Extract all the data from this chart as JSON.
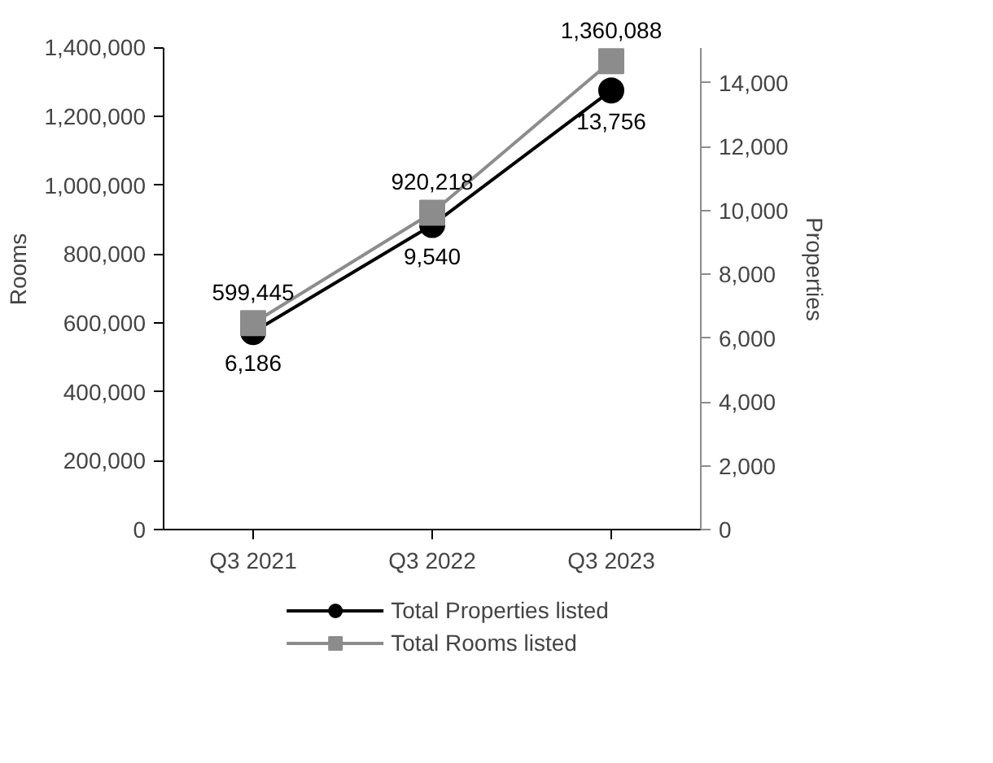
{
  "chart_data": {
    "type": "line",
    "categories": [
      "Q3 2021",
      "Q3 2022",
      "Q3 2023"
    ],
    "ylabel": "Rooms",
    "y2label": "Properties",
    "ylim": [
      0,
      1400000
    ],
    "yticks": [
      {
        "value": 0,
        "label": "0"
      },
      {
        "value": 200000,
        "label": "200,000"
      },
      {
        "value": 400000,
        "label": "400,000"
      },
      {
        "value": 600000,
        "label": "600,000"
      },
      {
        "value": 800000,
        "label": "800,000"
      },
      {
        "value": 1000000,
        "label": "1,000,000"
      },
      {
        "value": 1200000,
        "label": "1,200,000"
      },
      {
        "value": 1400000,
        "label": "1,400,000"
      }
    ],
    "y2lim": [
      0,
      15100
    ],
    "y2ticks": [
      {
        "value": 0,
        "label": "0"
      },
      {
        "value": 2000,
        "label": "2,000"
      },
      {
        "value": 4000,
        "label": "4,000"
      },
      {
        "value": 6000,
        "label": "6,000"
      },
      {
        "value": 8000,
        "label": "8,000"
      },
      {
        "value": 10000,
        "label": "10,000"
      },
      {
        "value": 12000,
        "label": "12,000"
      },
      {
        "value": 14000,
        "label": "14,000"
      }
    ],
    "series": [
      {
        "name": "Total Properties listed",
        "color": "#000000",
        "values": [
          6186,
          9540,
          13756
        ],
        "value_labels": [
          "6,186",
          "9,540",
          "13,756"
        ],
        "axis": "y2",
        "marker": "circle"
      },
      {
        "name": "Total Rooms listed",
        "color": "#8c8c8c",
        "values": [
          599445,
          920218,
          1360088
        ],
        "value_labels": [
          "599,445",
          "920,218",
          "1,360,088"
        ],
        "marker": "square"
      }
    ],
    "data_labels": true,
    "grid": false,
    "legend": "bottom",
    "line_style": "solid"
  }
}
